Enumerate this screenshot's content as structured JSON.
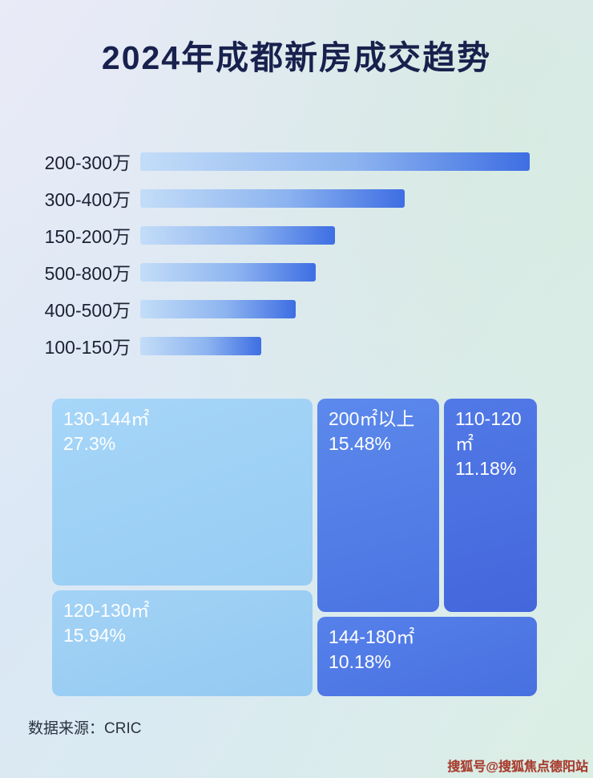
{
  "title": "2024年成都新房成交趋势",
  "chart_data": [
    {
      "type": "bar",
      "orientation": "horizontal",
      "title": "2024年成都新房成交趋势",
      "categories": [
        "200-300万",
        "300-400万",
        "150-200万",
        "500-800万",
        "400-500万",
        "100-150万"
      ],
      "values": [
        100,
        68,
        50,
        45,
        40,
        31
      ],
      "values_note": "relative bar lengths in percent of longest bar; no numeric labels shown in image",
      "bar_gradient": [
        "#c3ddf8",
        "#3e6ee3"
      ],
      "grid": false,
      "legend": false
    },
    {
      "type": "treemap",
      "items": [
        {
          "label": "130-144㎡",
          "value": 27.3,
          "display": "27.3%"
        },
        {
          "label": "200㎡以上",
          "value": 15.48,
          "display": "15.48%"
        },
        {
          "label": "110-120㎡",
          "value": 11.18,
          "display": "11.18%"
        },
        {
          "label": "120-130㎡",
          "value": 15.94,
          "display": "15.94%"
        },
        {
          "label": "144-180㎡",
          "value": 10.18,
          "display": "10.18%"
        }
      ],
      "colors": {
        "light_blue": "#9fd2f6",
        "medium_blue": "#5282e8",
        "dark_blue": "#4a70e0"
      }
    }
  ],
  "footer": {
    "source": "数据来源：CRIC"
  },
  "watermark": "搜狐号@搜狐焦点德阳站"
}
